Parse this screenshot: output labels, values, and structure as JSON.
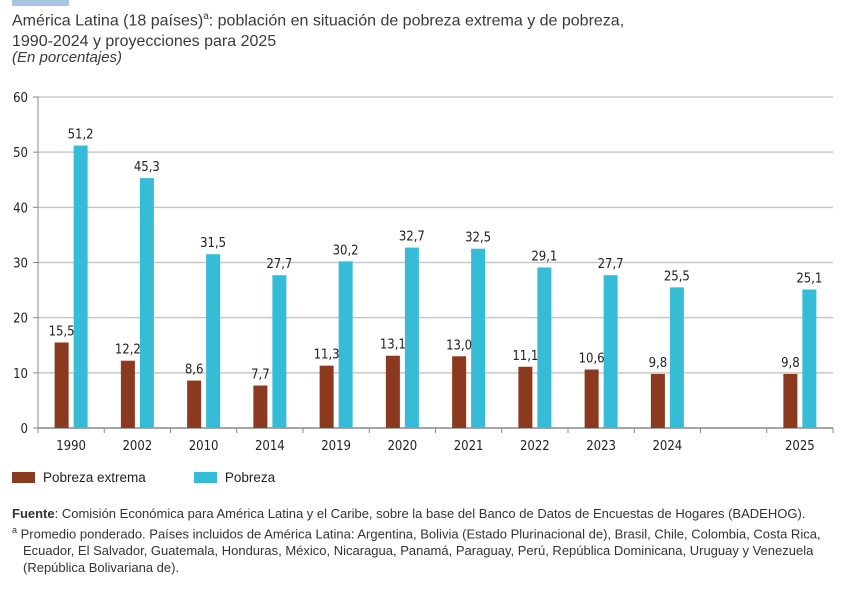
{
  "header": {
    "title_main": "América Latina (18 países)",
    "title_sup": "a",
    "title_rest": ": población en situación de pobreza extrema y de pobreza,",
    "title_line2": "1990-2024 y proyecciones para 2025",
    "subtitle": "(En porcentajes)"
  },
  "chart_data": {
    "type": "bar",
    "title": "América Latina (18 países): población en situación de pobreza extrema y de pobreza, 1990-2024 y proyecciones para 2025",
    "subtitle": "(En porcentajes)",
    "xlabel": "",
    "ylabel": "",
    "categories": [
      "1990",
      "2002",
      "2010",
      "2014",
      "2019",
      "2020",
      "2021",
      "2022",
      "2023",
      "2024",
      "",
      "2025"
    ],
    "series": [
      {
        "name": "Pobreza extrema",
        "color": "#8b3a1f",
        "values": [
          15.5,
          12.2,
          8.6,
          7.7,
          11.3,
          13.1,
          13.0,
          11.1,
          10.6,
          9.8,
          null,
          9.8
        ],
        "labels": [
          "15,5",
          "12,2",
          "8,6",
          "7,7",
          "11,3",
          "13,1",
          "13,0",
          "11,1",
          "10,6",
          "9,8",
          "",
          "9,8"
        ]
      },
      {
        "name": "Pobreza",
        "color": "#36bcd6",
        "values": [
          51.2,
          45.3,
          31.5,
          27.7,
          30.2,
          32.7,
          32.5,
          29.1,
          27.7,
          25.5,
          null,
          25.1
        ],
        "labels": [
          "51,2",
          "45,3",
          "31,5",
          "27,7",
          "30,2",
          "32,7",
          "32,5",
          "29,1",
          "27,7",
          "25,5",
          "",
          "25,1"
        ]
      }
    ],
    "ylim": [
      0,
      60
    ],
    "yticks": [
      0,
      10,
      20,
      30,
      40,
      50,
      60
    ],
    "grid": true,
    "legend_position": "bottom-left"
  },
  "legend": {
    "items": [
      {
        "label": "Pobreza extrema",
        "color": "#8b3a1f"
      },
      {
        "label": "Pobreza",
        "color": "#36bcd6"
      }
    ]
  },
  "notes": {
    "source_label": "Fuente",
    "source_text": ": Comisión Económica para América Latina y el Caribe, sobre la base del Banco de Datos de Encuestas de Hogares (BADEHOG).",
    "footnote_mark": "a",
    "footnote_text": " Promedio ponderado. Países incluidos de América Latina: Argentina, Bolivia (Estado Plurinacional de), Brasil, Chile, Colombia, Costa Rica, Ecuador, El Salvador, Guatemala, Honduras, México, Nicaragua, Panamá, Paraguay, Perú, República Dominicana, Uruguay y Venezuela (República Bolivariana de)."
  }
}
